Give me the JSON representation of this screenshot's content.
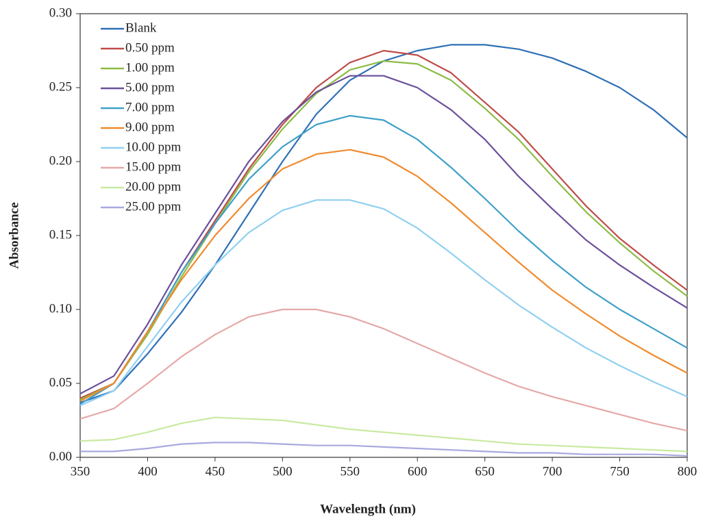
{
  "chart_data": {
    "type": "line",
    "x_label": "Wavelength (nm)",
    "y_label": "Absorbance",
    "x": [
      350,
      375,
      400,
      425,
      450,
      475,
      500,
      525,
      550,
      575,
      600,
      625,
      650,
      675,
      700,
      725,
      750,
      775,
      800
    ],
    "xlim": [
      350,
      800
    ],
    "xticks": [
      350,
      400,
      450,
      500,
      550,
      600,
      650,
      700,
      750,
      800
    ],
    "ylim": [
      0,
      0.3
    ],
    "yticks": [
      {
        "value": 0,
        "label": "0.00"
      },
      {
        "value": 0.05,
        "label": "0.05"
      },
      {
        "value": 0.1,
        "label": "0.10"
      },
      {
        "value": 0.15,
        "label": "0.15"
      },
      {
        "value": 0.2,
        "label": "0.20"
      },
      {
        "value": 0.25,
        "label": "0.25"
      },
      {
        "value": 0.3,
        "label": "0.30"
      }
    ],
    "legend": "top-left",
    "series": [
      {
        "name": "Blank",
        "color": "#2e6fb5",
        "values": [
          0.037,
          0.045,
          0.07,
          0.098,
          0.13,
          0.165,
          0.2,
          0.232,
          0.255,
          0.268,
          0.275,
          0.279,
          0.279,
          0.276,
          0.27,
          0.261,
          0.25,
          0.235,
          0.216
        ]
      },
      {
        "name": "0.50 ppm",
        "color": "#be4b48",
        "values": [
          0.04,
          0.05,
          0.085,
          0.125,
          0.16,
          0.195,
          0.225,
          0.25,
          0.267,
          0.275,
          0.272,
          0.26,
          0.24,
          0.22,
          0.195,
          0.17,
          0.148,
          0.13,
          0.113
        ]
      },
      {
        "name": "1.00 ppm",
        "color": "#8cbb45",
        "values": [
          0.039,
          0.05,
          0.083,
          0.122,
          0.158,
          0.193,
          0.222,
          0.246,
          0.262,
          0.268,
          0.266,
          0.255,
          0.236,
          0.215,
          0.19,
          0.166,
          0.145,
          0.126,
          0.109
        ]
      },
      {
        "name": "5.00 ppm",
        "color": "#6a4f9a",
        "values": [
          0.043,
          0.055,
          0.09,
          0.13,
          0.165,
          0.2,
          0.227,
          0.247,
          0.258,
          0.258,
          0.25,
          0.235,
          0.215,
          0.19,
          0.168,
          0.147,
          0.13,
          0.115,
          0.101
        ]
      },
      {
        "name": "7.00 ppm",
        "color": "#3ea0c8",
        "values": [
          0.036,
          0.05,
          0.085,
          0.125,
          0.158,
          0.188,
          0.21,
          0.225,
          0.231,
          0.228,
          0.215,
          0.196,
          0.175,
          0.153,
          0.133,
          0.115,
          0.1,
          0.087,
          0.074
        ]
      },
      {
        "name": "9.00 ppm",
        "color": "#f08a2c",
        "values": [
          0.038,
          0.05,
          0.085,
          0.12,
          0.15,
          0.175,
          0.195,
          0.205,
          0.208,
          0.203,
          0.19,
          0.172,
          0.152,
          0.132,
          0.113,
          0.097,
          0.082,
          0.069,
          0.057
        ]
      },
      {
        "name": "10.00 ppm",
        "color": "#8fd0f0",
        "values": [
          0.035,
          0.045,
          0.075,
          0.105,
          0.13,
          0.152,
          0.167,
          0.174,
          0.174,
          0.168,
          0.155,
          0.138,
          0.12,
          0.103,
          0.088,
          0.074,
          0.062,
          0.051,
          0.041
        ]
      },
      {
        "name": "15.00 ppm",
        "color": "#e6a8a8",
        "values": [
          0.026,
          0.033,
          0.05,
          0.068,
          0.083,
          0.095,
          0.1,
          0.1,
          0.095,
          0.087,
          0.077,
          0.067,
          0.057,
          0.048,
          0.041,
          0.035,
          0.029,
          0.023,
          0.018
        ]
      },
      {
        "name": "20.00 ppm",
        "color": "#c8eaa0",
        "values": [
          0.011,
          0.012,
          0.017,
          0.023,
          0.027,
          0.026,
          0.025,
          0.022,
          0.019,
          0.017,
          0.015,
          0.013,
          0.011,
          0.009,
          0.008,
          0.007,
          0.006,
          0.005,
          0.004
        ]
      },
      {
        "name": "25.00 ppm",
        "color": "#a8a8e0",
        "values": [
          0.004,
          0.004,
          0.006,
          0.009,
          0.01,
          0.01,
          0.009,
          0.008,
          0.008,
          0.007,
          0.006,
          0.005,
          0.004,
          0.003,
          0.003,
          0.002,
          0.002,
          0.002,
          0.001
        ]
      }
    ]
  }
}
